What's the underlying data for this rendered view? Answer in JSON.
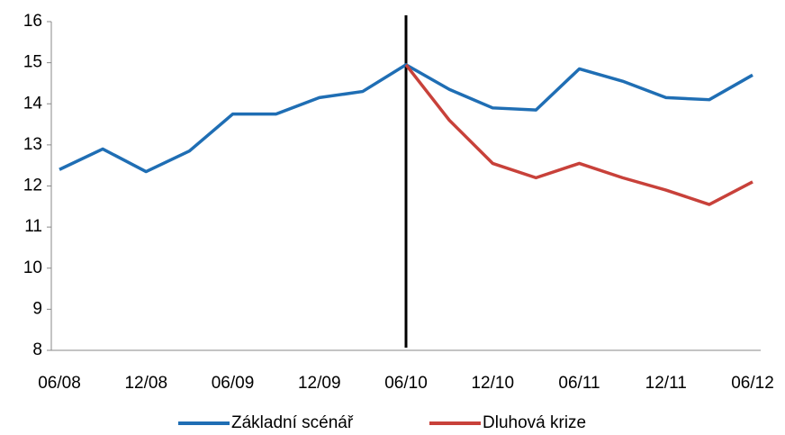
{
  "chart_data": {
    "type": "line",
    "categories": [
      "06/08",
      null,
      "12/08",
      null,
      "06/09",
      null,
      "12/09",
      null,
      "06/10",
      null,
      "12/10",
      null,
      "06/11",
      null,
      "12/11",
      null,
      "06/12"
    ],
    "series": [
      {
        "name": "Základní scénář",
        "color": "#1f6eb4",
        "values": [
          12.4,
          12.9,
          12.35,
          12.85,
          13.75,
          13.75,
          14.15,
          14.3,
          14.95,
          14.35,
          13.9,
          13.85,
          14.85,
          14.55,
          14.15,
          14.1,
          14.7
        ]
      },
      {
        "name": "Dluhová krize",
        "color": "#c8413a",
        "values": [
          null,
          null,
          null,
          null,
          null,
          null,
          null,
          null,
          14.95,
          13.6,
          12.55,
          12.2,
          12.55,
          12.2,
          11.9,
          11.55,
          12.1
        ]
      }
    ],
    "ylim": [
      8,
      16
    ],
    "yticks": [
      8,
      9,
      10,
      11,
      12,
      13,
      14,
      15,
      16
    ],
    "vline_index": 8,
    "grid": false,
    "legend": "bottom"
  }
}
